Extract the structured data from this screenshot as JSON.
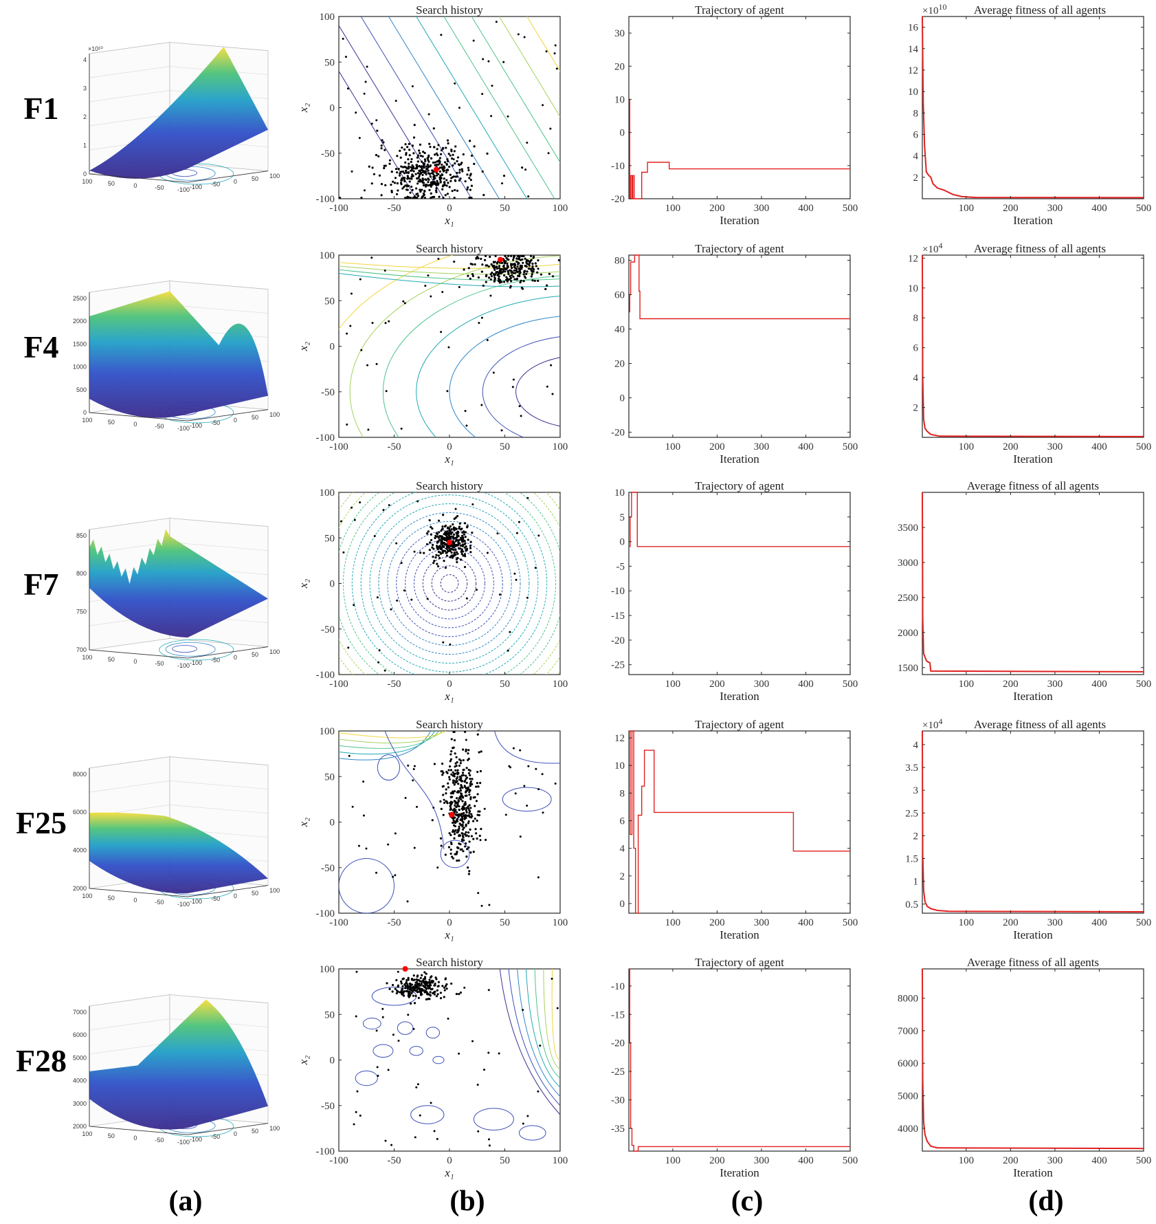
{
  "figure": {
    "column_labels": [
      "(a)",
      "(b)",
      "(c)",
      "(d)"
    ],
    "line_color": "#e02020",
    "point_color": "#000000",
    "best_color": "#ff0000",
    "contour_colors": [
      "#3b2f8f",
      "#3e4fb7",
      "#2f86c8",
      "#1fa9b5",
      "#4cc38a",
      "#a5d25b",
      "#f2d43a"
    ]
  },
  "rows": [
    {
      "label": "F1",
      "surface": {
        "shape": "bowl",
        "ztick_labels": [
          "0",
          "1",
          "2",
          "3",
          "4"
        ],
        "zexp": "×10¹⁰",
        "xticks": [
          "100",
          "50",
          "0",
          "-50",
          "-100"
        ],
        "yticks": [
          "-100",
          "-50",
          "0",
          "50",
          "100"
        ]
      },
      "search": {
        "title": "Search history",
        "xlabel": "x₁",
        "ylabel": "x₂",
        "xticks": [
          -100,
          -50,
          0,
          50,
          100
        ],
        "yticks": [
          -100,
          -50,
          0,
          50,
          100
        ],
        "contour": "lines",
        "cluster": [
          -20,
          -72,
          22,
          16,
          420
        ],
        "best": [
          -12,
          -68
        ]
      },
      "trajectory": {
        "title": "Trajectory of agent",
        "xlabel": "Iteration",
        "xlim": [
          1,
          500
        ],
        "ylim": [
          -20,
          35
        ],
        "xticks": [
          100,
          200,
          300,
          400,
          500
        ],
        "yticks": [
          -20,
          -10,
          0,
          10,
          20,
          30
        ],
        "steps": [
          [
            1,
            10
          ],
          [
            3,
            -20
          ],
          [
            5,
            -13
          ],
          [
            8,
            -20
          ],
          [
            10,
            -13
          ],
          [
            13,
            -20
          ],
          [
            25,
            -20
          ],
          [
            30,
            -12
          ],
          [
            40,
            -12
          ],
          [
            43,
            -9
          ],
          [
            90,
            -9
          ],
          [
            92,
            -11
          ],
          [
            500,
            -11
          ]
        ]
      },
      "fitness": {
        "title": "Average fitness of all agents",
        "xlabel": "Iteration",
        "xlim": [
          1,
          500
        ],
        "ylim": [
          0,
          17
        ],
        "xticks": [
          100,
          200,
          300,
          400,
          500
        ],
        "yticks": [
          2,
          4,
          6,
          8,
          10,
          12,
          14,
          16
        ],
        "exponent": "10",
        "curve": [
          [
            1,
            17
          ],
          [
            3,
            9
          ],
          [
            6,
            5
          ],
          [
            10,
            2.5
          ],
          [
            15,
            2.2
          ],
          [
            20,
            2
          ],
          [
            25,
            1.4
          ],
          [
            35,
            1
          ],
          [
            50,
            0.8
          ],
          [
            70,
            0.4
          ],
          [
            90,
            0.2
          ],
          [
            120,
            0.12
          ],
          [
            500,
            0.1
          ]
        ]
      }
    },
    {
      "label": "F4",
      "surface": {
        "shape": "saddle",
        "ztick_labels": [
          "0",
          "500",
          "1000",
          "1500",
          "2000",
          "2500"
        ],
        "zexp": "",
        "xticks": [
          "100",
          "50",
          "0",
          "-50",
          "-100"
        ],
        "yticks": [
          "-100",
          "-50",
          "0",
          "50",
          "100"
        ]
      },
      "search": {
        "title": "Search history",
        "xlabel": "x₁",
        "ylabel": "x₂",
        "xticks": [
          -100,
          -50,
          0,
          50,
          100
        ],
        "yticks": [
          -100,
          -50,
          0,
          50,
          100
        ],
        "contour": "ellipses",
        "cluster": [
          55,
          85,
          16,
          9,
          260
        ],
        "best": [
          46,
          95
        ]
      },
      "trajectory": {
        "title": "Trajectory of agent",
        "xlabel": "Iteration",
        "xlim": [
          1,
          500
        ],
        "ylim": [
          -23,
          83
        ],
        "xticks": [
          100,
          200,
          300,
          400,
          500
        ],
        "yticks": [
          -20,
          0,
          20,
          40,
          60,
          80
        ],
        "steps": [
          [
            1,
            50
          ],
          [
            3,
            60
          ],
          [
            5,
            79
          ],
          [
            12,
            79
          ],
          [
            14,
            83
          ],
          [
            22,
            83
          ],
          [
            24,
            62
          ],
          [
            26,
            46
          ],
          [
            500,
            46
          ]
        ]
      },
      "fitness": {
        "title": "Average fitness of all agents",
        "xlabel": "Iteration",
        "xlim": [
          1,
          500
        ],
        "ylim": [
          0,
          12.2
        ],
        "xticks": [
          100,
          200,
          300,
          400,
          500
        ],
        "yticks": [
          2,
          4,
          6,
          8,
          10,
          12
        ],
        "exponent": "4",
        "curve": [
          [
            1,
            12.2
          ],
          [
            2,
            4
          ],
          [
            4,
            1.2
          ],
          [
            7,
            0.6
          ],
          [
            12,
            0.4
          ],
          [
            20,
            0.2
          ],
          [
            40,
            0.08
          ],
          [
            500,
            0.05
          ]
        ]
      }
    },
    {
      "label": "F7",
      "surface": {
        "shape": "rugged",
        "ztick_labels": [
          "700",
          "750",
          "800",
          "850"
        ],
        "zexp": "",
        "xticks": [
          "100",
          "50",
          "0",
          "-50",
          "-100"
        ],
        "yticks": [
          "-100",
          "-50",
          "0",
          "50",
          "100"
        ]
      },
      "search": {
        "title": "Search history",
        "xlabel": "x₁",
        "ylabel": "x₂",
        "xticks": [
          -100,
          -50,
          0,
          50,
          100
        ],
        "yticks": [
          -100,
          -50,
          0,
          50,
          100
        ],
        "contour": "dense",
        "cluster": [
          0,
          45,
          9,
          10,
          300
        ],
        "best": [
          0,
          45
        ]
      },
      "trajectory": {
        "title": "Trajectory of agent",
        "xlabel": "Iteration",
        "xlim": [
          1,
          500
        ],
        "ylim": [
          -27,
          10
        ],
        "xticks": [
          100,
          200,
          300,
          400,
          500
        ],
        "yticks": [
          -25,
          -20,
          -15,
          -10,
          -5,
          0,
          5,
          10
        ],
        "steps": [
          [
            1,
            -1
          ],
          [
            4,
            5
          ],
          [
            7,
            10
          ],
          [
            17,
            10
          ],
          [
            20,
            -1
          ],
          [
            500,
            -1
          ]
        ]
      },
      "fitness": {
        "title": "Average fitness of all agents",
        "xlabel": "Iteration",
        "xlim": [
          1,
          500
        ],
        "ylim": [
          1400,
          4000
        ],
        "xticks": [
          100,
          200,
          300,
          400,
          500
        ],
        "yticks": [
          1500,
          2000,
          2500,
          3000,
          3500
        ],
        "exponent": "",
        "curve": [
          [
            1,
            4000
          ],
          [
            2,
            2200
          ],
          [
            4,
            1700
          ],
          [
            7,
            1650
          ],
          [
            10,
            1600
          ],
          [
            14,
            1580
          ],
          [
            18,
            1570
          ],
          [
            20,
            1450
          ],
          [
            500,
            1440
          ]
        ]
      }
    },
    {
      "label": "F25",
      "surface": {
        "shape": "valley",
        "ztick_labels": [
          "2000",
          "4000",
          "6000",
          "8000"
        ],
        "zexp": "",
        "xticks": [
          "100",
          "50",
          "0",
          "-50",
          "-100"
        ],
        "yticks": [
          "-100",
          "-50",
          "0",
          "50",
          "100"
        ]
      },
      "search": {
        "title": "Search history",
        "xlabel": "x₁",
        "ylabel": "x₂",
        "xticks": [
          -100,
          -50,
          0,
          50,
          100
        ],
        "yticks": [
          -100,
          -50,
          0,
          50,
          100
        ],
        "contour": "blobs",
        "cluster": [
          10,
          20,
          8,
          30,
          380
        ],
        "best": [
          2,
          8
        ]
      },
      "trajectory": {
        "title": "Trajectory of agent",
        "xlabel": "Iteration",
        "xlim": [
          1,
          500
        ],
        "ylim": [
          -0.7,
          12.5
        ],
        "xticks": [
          100,
          200,
          300,
          400,
          500
        ],
        "yticks": [
          0,
          2,
          4,
          6,
          8,
          10,
          12
        ],
        "steps": [
          [
            1,
            12.5
          ],
          [
            4,
            5
          ],
          [
            8,
            12.5
          ],
          [
            12,
            4
          ],
          [
            16,
            -0.7
          ],
          [
            22,
            6.4
          ],
          [
            30,
            8.5
          ],
          [
            36,
            11.1
          ],
          [
            55,
            11.1
          ],
          [
            58,
            6.6
          ],
          [
            370,
            6.6
          ],
          [
            372,
            3.8
          ],
          [
            500,
            3.8
          ]
        ]
      },
      "fitness": {
        "title": "Average fitness of all agents",
        "xlabel": "Iteration",
        "xlim": [
          1,
          500
        ],
        "ylim": [
          0.3,
          4.3
        ],
        "xticks": [
          100,
          200,
          300,
          400,
          500
        ],
        "yticks": [
          0.5,
          1,
          1.5,
          2,
          2.5,
          3,
          3.5,
          4
        ],
        "exponent": "4",
        "curve": [
          [
            1,
            4.3
          ],
          [
            2,
            1.6
          ],
          [
            4,
            0.8
          ],
          [
            7,
            0.55
          ],
          [
            12,
            0.45
          ],
          [
            20,
            0.4
          ],
          [
            35,
            0.36
          ],
          [
            60,
            0.34
          ],
          [
            500,
            0.33
          ]
        ]
      }
    },
    {
      "label": "F28",
      "surface": {
        "shape": "ridge",
        "ztick_labels": [
          "2000",
          "3000",
          "4000",
          "5000",
          "6000",
          "7000"
        ],
        "zexp": "",
        "xticks": [
          "100",
          "50",
          "0",
          "-50",
          "-100"
        ],
        "yticks": [
          "-100",
          "-50",
          "0",
          "50",
          "100"
        ]
      },
      "search": {
        "title": "Search history",
        "xlabel": "x₁",
        "ylabel": "x₂",
        "xticks": [
          -100,
          -50,
          0,
          50,
          100
        ],
        "yticks": [
          -100,
          -50,
          0,
          50,
          100
        ],
        "contour": "mixed",
        "cluster": [
          -25,
          80,
          12,
          6,
          230
        ],
        "best": [
          -40,
          100
        ]
      },
      "trajectory": {
        "title": "Trajectory of agent",
        "xlabel": "Iteration",
        "xlim": [
          1,
          500
        ],
        "ylim": [
          -39,
          -7
        ],
        "xticks": [
          100,
          200,
          300,
          400,
          500
        ],
        "yticks": [
          -35,
          -30,
          -25,
          -20,
          -15,
          -10
        ],
        "steps": [
          [
            1,
            -7
          ],
          [
            3,
            -20
          ],
          [
            5,
            -35
          ],
          [
            8,
            -38
          ],
          [
            12,
            -39
          ],
          [
            20,
            -39
          ],
          [
            22,
            -38.2
          ],
          [
            500,
            -38.2
          ]
        ]
      },
      "fitness": {
        "title": "Average fitness of all agents",
        "xlabel": "Iteration",
        "xlim": [
          1,
          500
        ],
        "ylim": [
          3300,
          8900
        ],
        "xticks": [
          100,
          200,
          300,
          400,
          500
        ],
        "yticks": [
          4000,
          5000,
          6000,
          7000,
          8000
        ],
        "exponent": "",
        "curve": [
          [
            1,
            8900
          ],
          [
            2,
            5500
          ],
          [
            4,
            4200
          ],
          [
            7,
            3800
          ],
          [
            12,
            3600
          ],
          [
            20,
            3450
          ],
          [
            35,
            3400
          ],
          [
            500,
            3380
          ]
        ]
      }
    }
  ]
}
